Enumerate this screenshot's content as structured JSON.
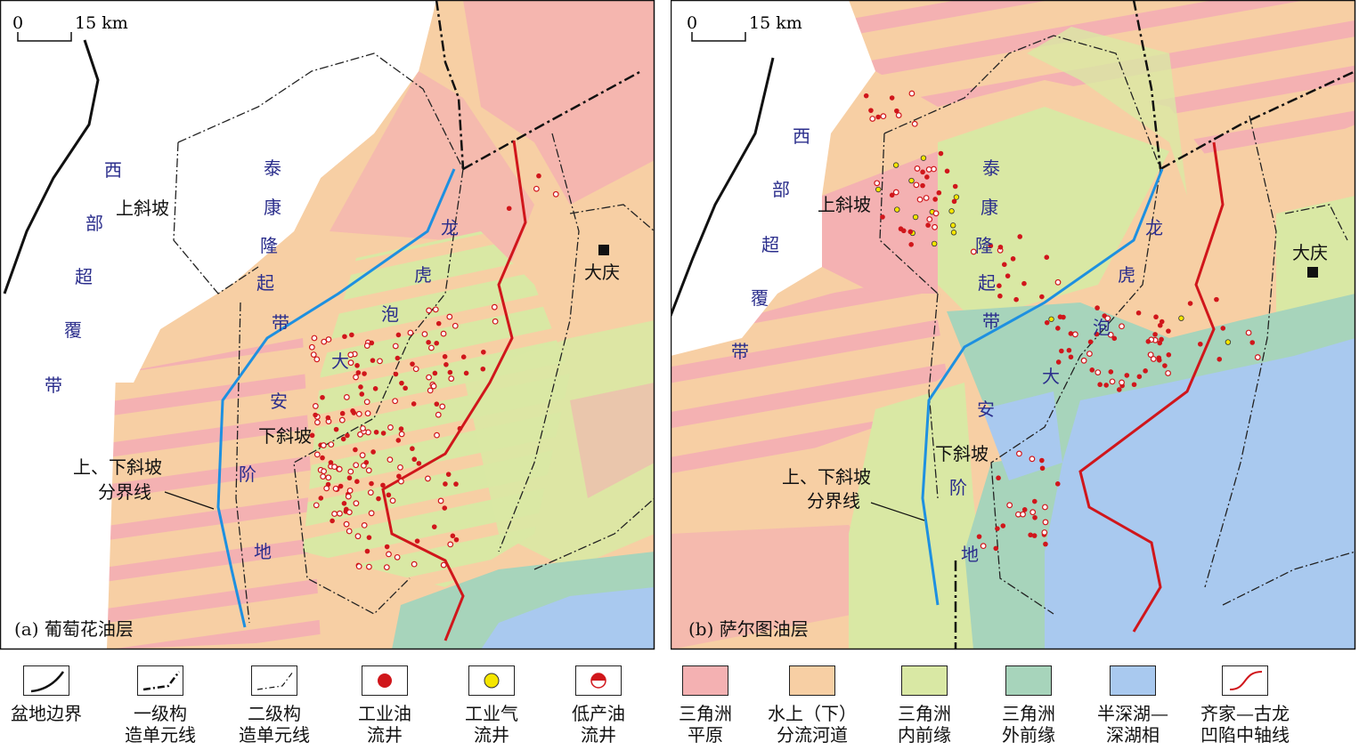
{
  "colors": {
    "delta_plain": "#f4b1b2",
    "distributary_channel": "#f7cfa4",
    "inner_delta_front": "#d9e8a4",
    "outer_delta_front": "#a7d4bb",
    "deep_lake": "#a9c9ef",
    "basin_boundary": "#111111",
    "slope_boundary": "#1e90e0",
    "depression_axis": "#d0161b",
    "industrial_oil_well": "#d0161b",
    "industrial_gas_well": "#f5e600",
    "tectonic_label": "#2b2e8c"
  },
  "panel_a": {
    "scale_zero": "0",
    "scale_km": "15 km",
    "title": "(a) 葡萄花油层",
    "labels": {
      "west_1": "西",
      "west_2": "部",
      "west_3": "超",
      "west_4": "覆",
      "west_5": "带",
      "tk_1": "泰",
      "tk_2": "康",
      "tk_3": "隆",
      "tk_4": "起",
      "tk_5": "带",
      "lh_1": "龙",
      "lh_2": "虎",
      "lh_3": "泡",
      "da_1": "大",
      "da_2": "安",
      "jd_1": "阶",
      "jd_2": "地",
      "upper_slope": "上斜坡",
      "lower_slope": "下斜坡",
      "boundary_1": "上、下斜坡",
      "boundary_2": "分界线",
      "daqing": "大庆"
    }
  },
  "panel_b": {
    "scale_zero": "0",
    "scale_km": "15 km",
    "title": "(b) 萨尔图油层",
    "labels": {
      "west_1": "西",
      "west_2": "部",
      "west_3": "超",
      "west_4": "覆",
      "west_5": "带",
      "tk_1": "泰",
      "tk_2": "康",
      "tk_3": "隆",
      "tk_4": "起",
      "tk_5": "带",
      "lh_1": "龙",
      "lh_2": "虎",
      "lh_3": "泡",
      "da_1": "大",
      "da_2": "安",
      "jd_1": "阶",
      "jd_2": "地",
      "upper_slope": "上斜坡",
      "lower_slope": "下斜坡",
      "boundary_1": "上、下斜坡",
      "boundary_2": "分界线",
      "daqing": "大庆"
    }
  },
  "legend": [
    {
      "id": "basin-boundary",
      "label": "盆地边界",
      "symbol": "basin-line"
    },
    {
      "id": "first-order-unit-line",
      "label": "一级构\n造单元线",
      "symbol": "dash-dot-bold"
    },
    {
      "id": "second-order-unit-line",
      "label": "二级构\n造单元线",
      "symbol": "dash-dot-thin"
    },
    {
      "id": "industrial-oil-well",
      "label": "工业油\n流井",
      "symbol": "oil-dot"
    },
    {
      "id": "industrial-gas-well",
      "label": "工业气\n流井",
      "symbol": "gas-dot"
    },
    {
      "id": "low-production-oil-well",
      "label": "低产油\n流井",
      "symbol": "half-dot"
    },
    {
      "id": "delta-plain",
      "label": "三角洲\n平原",
      "symbol": "fill-delta_plain"
    },
    {
      "id": "distributary-channel",
      "label": "水上（下）\n分流河道",
      "symbol": "fill-distributary_channel"
    },
    {
      "id": "inner-delta-front",
      "label": "三角洲\n内前缘",
      "symbol": "fill-inner_delta_front"
    },
    {
      "id": "outer-delta-front",
      "label": "三角洲\n外前缘",
      "symbol": "fill-outer_delta_front"
    },
    {
      "id": "deep-lake",
      "label": "半深湖—\n深湖相",
      "symbol": "fill-deep_lake"
    },
    {
      "id": "depression-axis",
      "label": "齐家—古龙\n凹陷中轴线",
      "symbol": "red-curve"
    }
  ]
}
